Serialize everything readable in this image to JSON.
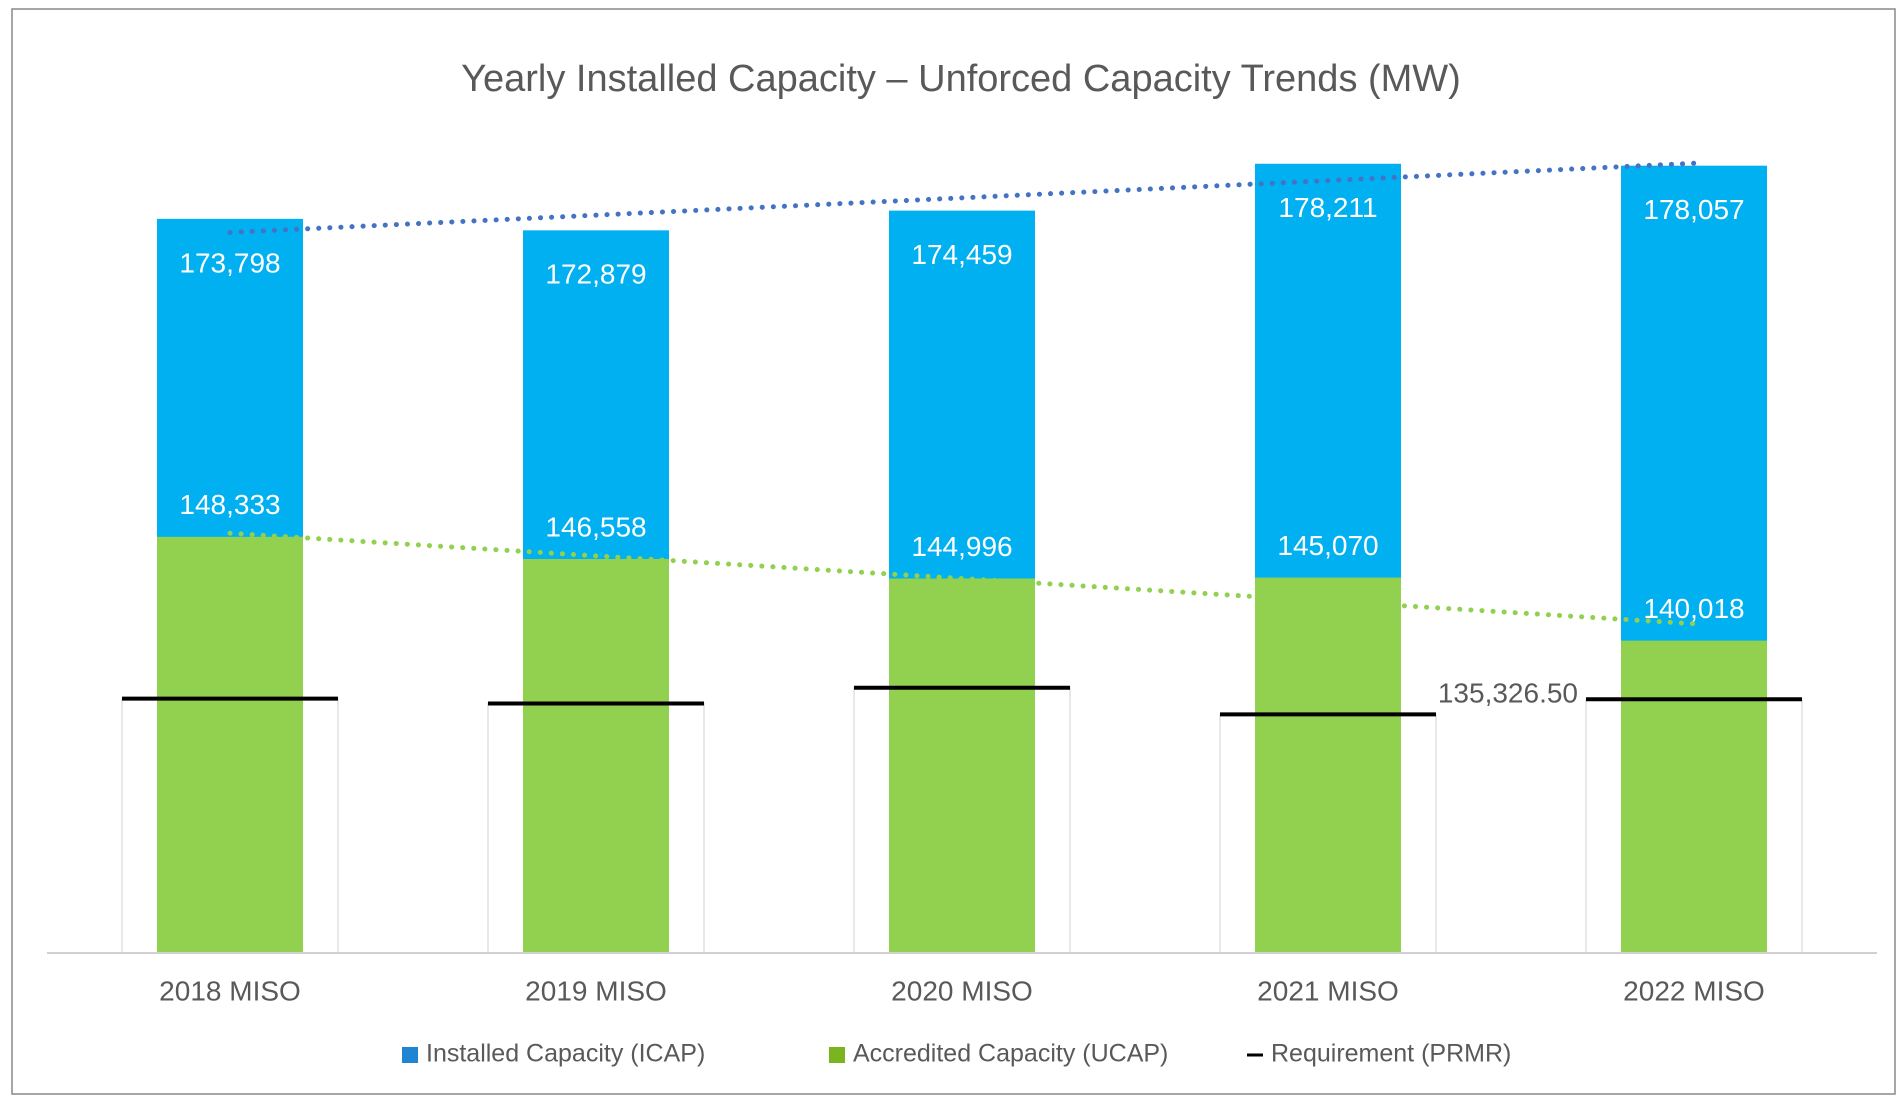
{
  "chart_data": {
    "type": "overlap-bar",
    "title": "Yearly Installed Capacity – Unforced Capacity Trends (MW)",
    "categories": [
      "2018 MISO",
      "2019 MISO",
      "2020 MISO",
      "2021 MISO",
      "2022 MISO"
    ],
    "series": [
      {
        "name": "Installed Capacity (ICAP)",
        "color": "#00b0f0",
        "legend_color": "#1f84d1",
        "trend_color": "#4472c4",
        "trendline": true,
        "label_position": "inside-top",
        "values": [
          173798,
          172879,
          174459,
          178211,
          178057
        ],
        "value_labels": [
          "173,798",
          "172,879",
          "174,459",
          "178,211",
          "178,057"
        ]
      },
      {
        "name": "Accredited Capacity (UCAP)",
        "color": "#92d050",
        "legend_color": "#7ab51d",
        "trend_color": "#92d050",
        "trendline": true,
        "label_position": "above",
        "values": [
          148333,
          146558,
          144996,
          145070,
          140018
        ],
        "value_labels": [
          "148,333",
          "146,558",
          "144,996",
          "145,070",
          "140,018"
        ]
      },
      {
        "name": "Requirement (PRMR)",
        "color": "#000000",
        "legend_color": "#000000",
        "trendline": false,
        "label_position": "left",
        "marker": "dash",
        "values": [
          135370,
          134980,
          136240,
          134110,
          135326.5
        ],
        "value_labels": [
          null,
          null,
          null,
          null,
          "135,326.50"
        ]
      }
    ],
    "ylim": [
      115000,
      185000
    ],
    "grid": false
  }
}
